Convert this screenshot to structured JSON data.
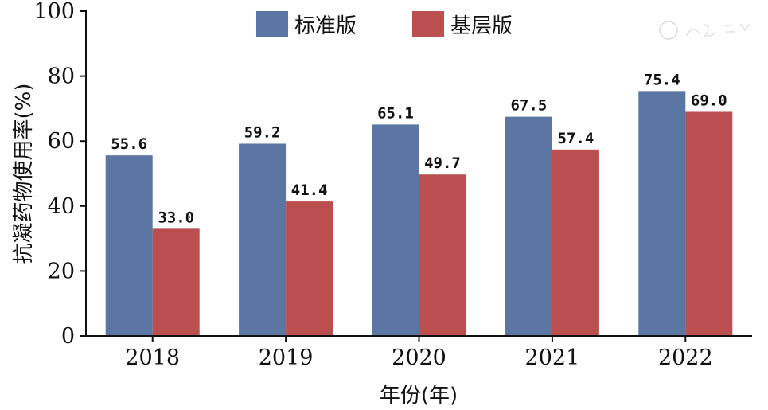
{
  "chart_data": {
    "type": "bar",
    "title": "",
    "xlabel": "年份(年)",
    "ylabel": "抗凝药物使用率(%)",
    "ylim": [
      0,
      100
    ],
    "yticks": [
      "0",
      "20",
      "40",
      "60",
      "80",
      "100"
    ],
    "categories": [
      "2018",
      "2019",
      "2020",
      "2021",
      "2022"
    ],
    "series": [
      {
        "name": "标准版",
        "color": "#5b76a3",
        "values": [
          55.6,
          59.2,
          65.1,
          67.5,
          75.4
        ],
        "labels": [
          "55.6",
          "59.2",
          "65.1",
          "67.5",
          "75.4"
        ]
      },
      {
        "name": "基层版",
        "color": "#bb4e4e",
        "values": [
          33.0,
          41.4,
          49.7,
          57.4,
          69.0
        ],
        "labels": [
          "33.0",
          "41.4",
          "49.7",
          "57.4",
          "69.0"
        ]
      }
    ],
    "legend": "top-center",
    "grid": false
  }
}
